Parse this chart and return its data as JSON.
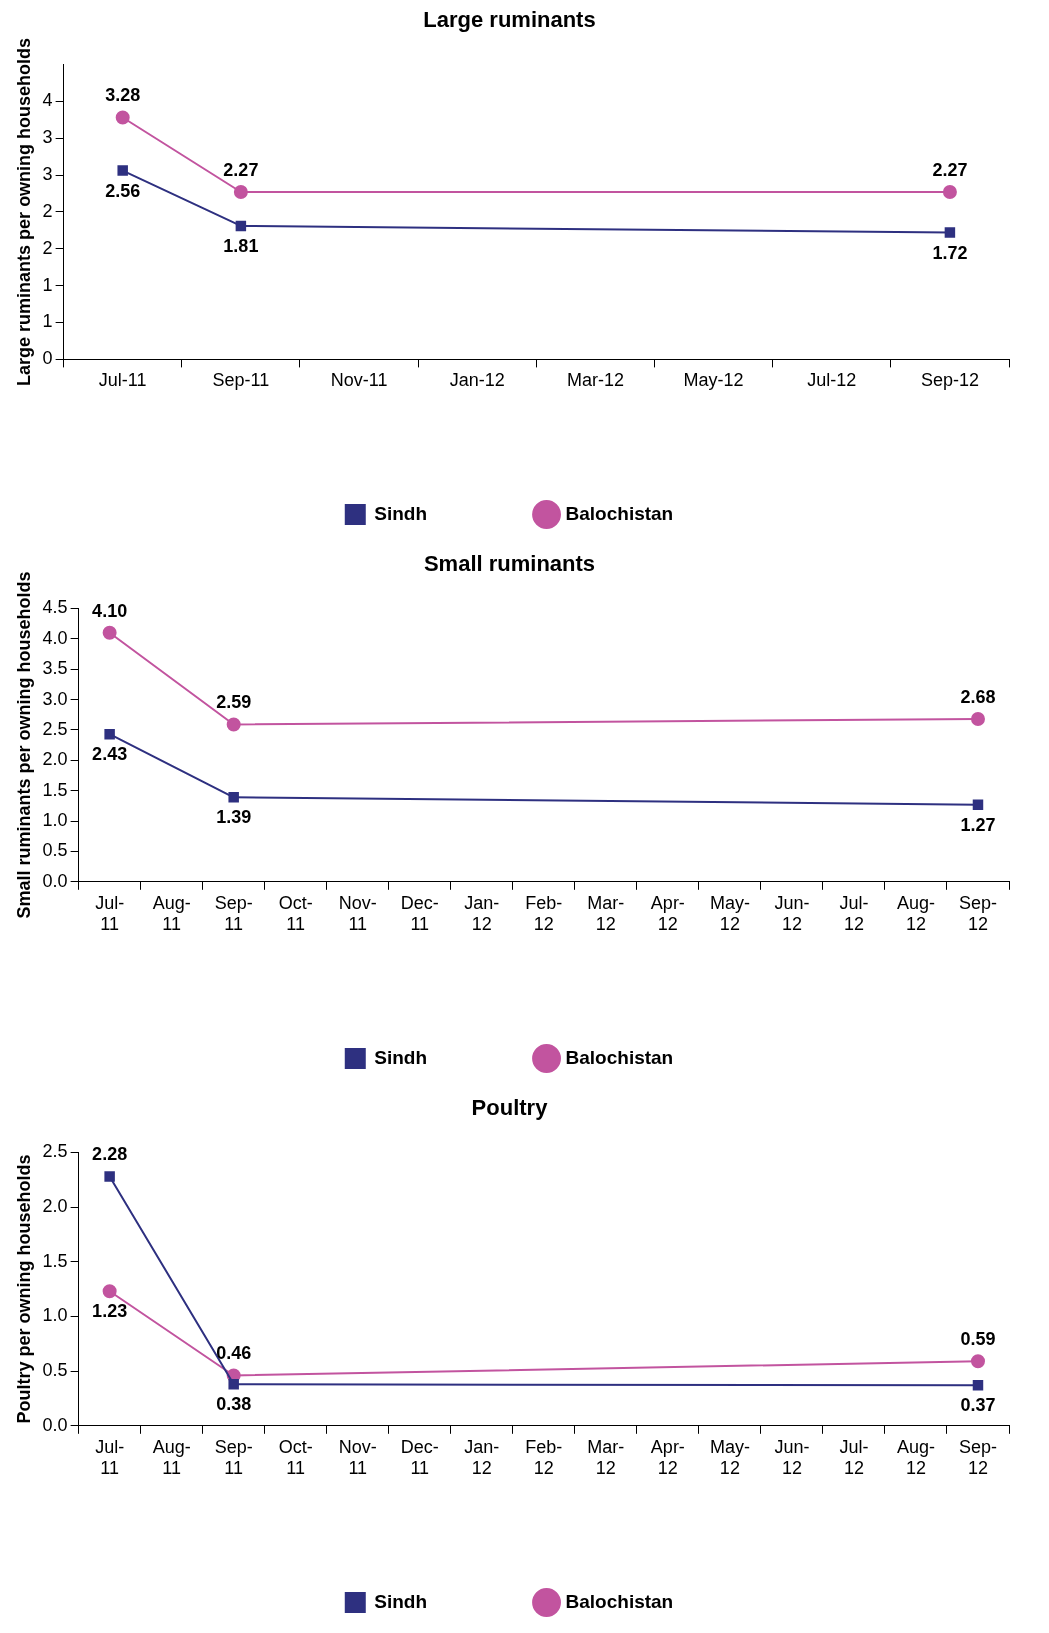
{
  "chart_data": [
    {
      "type": "line",
      "title": "Large ruminants",
      "ylabel": "Large ruminants per owning households",
      "categories": [
        "Jul-11",
        "Sep-11",
        "Nov-11",
        "Jan-12",
        "Mar-12",
        "May-12",
        "Jul-12",
        "Sep-12"
      ],
      "series": [
        {
          "name": "Sindh",
          "color": "#2e3080",
          "marker": "square",
          "values": [
            2.56,
            1.81,
            null,
            null,
            null,
            null,
            null,
            1.72
          ],
          "value_labels": [
            "2.56",
            "1.81",
            null,
            null,
            null,
            null,
            null,
            "1.72"
          ]
        },
        {
          "name": "Balochistan",
          "color": "#c2549f",
          "marker": "circle",
          "values": [
            3.28,
            2.27,
            null,
            null,
            null,
            null,
            null,
            2.27
          ],
          "value_labels": [
            "3.28",
            "2.27",
            null,
            null,
            null,
            null,
            null,
            "2.27"
          ]
        }
      ],
      "ylim": [
        0,
        4
      ],
      "yticks": [
        0,
        {
          "value": 0.5,
          "label": "1"
        },
        1,
        {
          "value": 1.5,
          "label": "2"
        },
        2,
        {
          "value": 2.5,
          "label": "3"
        },
        3,
        {
          "value": 3.5,
          "label": "4"
        }
      ],
      "grid": false,
      "legend": "bottom"
    },
    {
      "type": "line",
      "title": "Small ruminants",
      "ylabel": "Small ruminants per owning households",
      "categories": [
        "Jul-11",
        "Aug-11",
        "Sep-11",
        "Oct-11",
        "Nov-11",
        "Dec-11",
        "Jan-12",
        "Feb-12",
        "Mar-12",
        "Apr-12",
        "May-12",
        "Jun-12",
        "Jul-12",
        "Aug-12",
        "Sep-12"
      ],
      "series": [
        {
          "name": "Sindh",
          "color": "#2e3080",
          "marker": "square",
          "values": [
            2.43,
            null,
            1.39,
            null,
            null,
            null,
            null,
            null,
            null,
            null,
            null,
            null,
            null,
            null,
            1.27
          ],
          "value_labels": [
            "2.43",
            null,
            "1.39",
            null,
            null,
            null,
            null,
            null,
            null,
            null,
            null,
            null,
            null,
            null,
            "1.27"
          ]
        },
        {
          "name": "Balochistan",
          "color": "#c2549f",
          "marker": "circle",
          "values": [
            4.1,
            null,
            2.59,
            null,
            null,
            null,
            null,
            null,
            null,
            null,
            null,
            null,
            null,
            null,
            2.68
          ],
          "value_labels": [
            "4.10",
            null,
            "2.59",
            null,
            null,
            null,
            null,
            null,
            null,
            null,
            null,
            null,
            null,
            null,
            "2.68"
          ]
        }
      ],
      "ylim": [
        0,
        4.5
      ],
      "yticks": [
        {
          "value": 0,
          "label": "0.0"
        },
        {
          "value": 0.5,
          "label": "0.5"
        },
        {
          "value": 1,
          "label": "1.0"
        },
        {
          "value": 1.5,
          "label": "1.5"
        },
        {
          "value": 2,
          "label": "2.0"
        },
        {
          "value": 2.5,
          "label": "2.5"
        },
        {
          "value": 3,
          "label": "3.0"
        },
        {
          "value": 3.5,
          "label": "3.5"
        },
        {
          "value": 4,
          "label": "4.0"
        },
        {
          "value": 4.5,
          "label": "4.5"
        }
      ],
      "grid": false,
      "legend": "bottom"
    },
    {
      "type": "line",
      "title": "Poultry",
      "ylabel": "Poultry per owning households",
      "categories": [
        "Jul-11",
        "Aug-11",
        "Sep-11",
        "Oct-11",
        "Nov-11",
        "Dec-11",
        "Jan-12",
        "Feb-12",
        "Mar-12",
        "Apr-12",
        "May-12",
        "Jun-12",
        "Jul-12",
        "Aug-12",
        "Sep-12"
      ],
      "series": [
        {
          "name": "Sindh",
          "color": "#2e3080",
          "marker": "square",
          "values": [
            2.28,
            null,
            0.38,
            null,
            null,
            null,
            null,
            null,
            null,
            null,
            null,
            null,
            null,
            null,
            0.37
          ],
          "value_labels": [
            "2.28",
            null,
            "0.38",
            null,
            null,
            null,
            null,
            null,
            null,
            null,
            null,
            null,
            null,
            null,
            "0.37"
          ]
        },
        {
          "name": "Balochistan",
          "color": "#c2549f",
          "marker": "circle",
          "values": [
            1.23,
            null,
            0.46,
            null,
            null,
            null,
            null,
            null,
            null,
            null,
            null,
            null,
            null,
            null,
            0.59
          ],
          "value_labels": [
            "1.23",
            null,
            "0.46",
            null,
            null,
            null,
            null,
            null,
            null,
            null,
            null,
            null,
            null,
            null,
            "0.59"
          ]
        }
      ],
      "ylim": [
        0,
        2.5
      ],
      "yticks": [
        {
          "value": 0,
          "label": "0.0"
        },
        {
          "value": 0.5,
          "label": "0.5"
        },
        {
          "value": 1,
          "label": "1.0"
        },
        {
          "value": 1.5,
          "label": "1.5"
        },
        {
          "value": 2,
          "label": "2.0"
        },
        {
          "value": 2.5,
          "label": "2.5"
        }
      ],
      "grid": false,
      "legend": "bottom"
    }
  ]
}
